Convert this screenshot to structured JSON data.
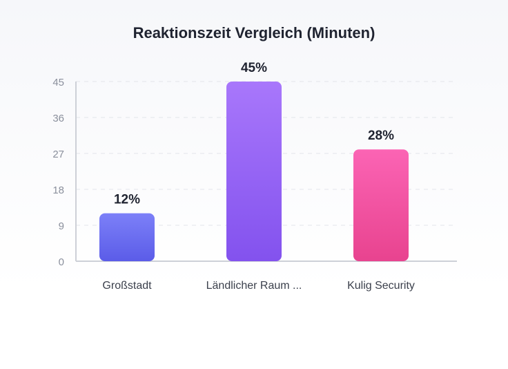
{
  "chart_data": {
    "type": "bar",
    "title": "Reaktionszeit Vergleich (Minuten)",
    "categories": [
      "Großstadt",
      "Ländlicher Raum ...",
      "Kulig Security"
    ],
    "values": [
      12,
      45,
      28
    ],
    "data_labels": [
      "12%",
      "45%",
      "28%"
    ],
    "yticks": [
      0,
      9,
      18,
      27,
      36,
      45
    ],
    "ylim": [
      0,
      45
    ],
    "grid": true,
    "colors": [
      [
        "#7c80f8",
        "#5b5ce8"
      ],
      [
        "#a877fb",
        "#8352ee"
      ],
      [
        "#fb64b4",
        "#e8438f"
      ]
    ]
  }
}
